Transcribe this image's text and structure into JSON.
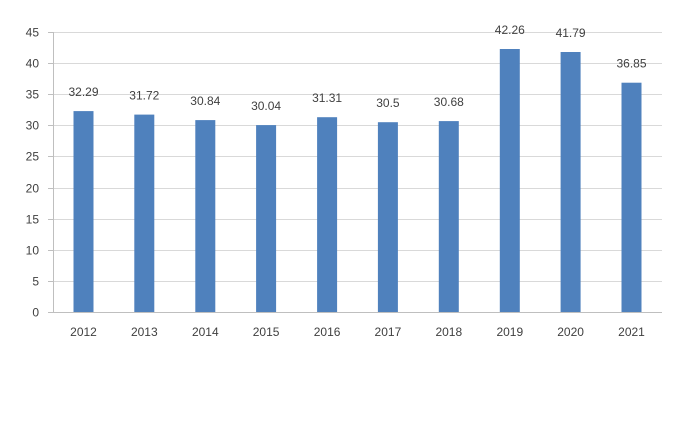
{
  "chart_data": {
    "type": "bar",
    "categories": [
      "2012",
      "2013",
      "2014",
      "2015",
      "2016",
      "2017",
      "2018",
      "2019",
      "2020",
      "2021"
    ],
    "values": [
      32.29,
      31.72,
      30.84,
      30.04,
      31.31,
      30.5,
      30.68,
      42.26,
      41.79,
      36.85
    ],
    "value_labels": [
      "32.29",
      "31.72",
      "30.84",
      "30.04",
      "31.31",
      "30.5",
      "30.68",
      "42.26",
      "41.79",
      "36.85"
    ],
    "y_ticks": [
      "0",
      "5",
      "10",
      "15",
      "20",
      "25",
      "30",
      "35",
      "40",
      "45"
    ],
    "ylim": [
      0,
      45
    ],
    "grid": true,
    "legend": false,
    "colors": {
      "bar": "#4F81BD",
      "grid": "#D9D9D9",
      "axis": "#BFBFBF",
      "text": "#404040"
    }
  }
}
